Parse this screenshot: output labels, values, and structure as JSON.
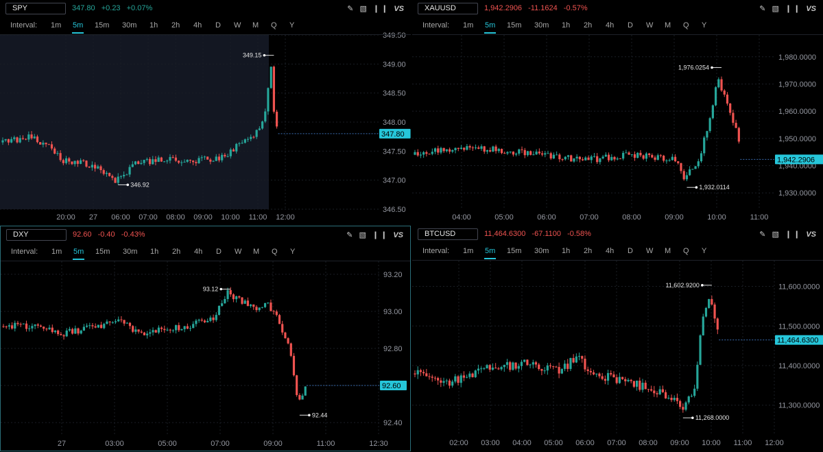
{
  "intervals_label": "Interval:",
  "intervals": [
    "1m",
    "5m",
    "15m",
    "30m",
    "1h",
    "2h",
    "4h",
    "D",
    "W",
    "M",
    "Q",
    "Y"
  ],
  "selected_interval": "5m",
  "tools": [
    "pencil-icon",
    "chart-icon",
    "candles-icon",
    "VS"
  ],
  "colors": {
    "up": "#26a69a",
    "down": "#ef5350",
    "accent": "#26c6da",
    "grid": "#1a1e25",
    "axis_text": "#9598a1"
  },
  "panels": [
    {
      "symbol": "SPY",
      "last": "347.80",
      "change": "+0.23",
      "change_pct": "+0.07%",
      "direction": "up",
      "last_label": "347.80",
      "chart_data": {
        "type": "candlestick",
        "y_ticks": [
          "349.50",
          "349.00",
          "348.50",
          "348.00",
          "347.50",
          "347.00",
          "346.50"
        ],
        "y_range": [
          346.5,
          349.5
        ],
        "x_ticks": [
          "20:00",
          "27",
          "06:00",
          "07:00",
          "08:00",
          "09:00",
          "10:00",
          "11:00",
          "12:00"
        ],
        "high_label": "349.15",
        "low_label": "346.92",
        "last": 347.8,
        "high": 349.15,
        "low": 346.92,
        "session_shading": true
      }
    },
    {
      "symbol": "XAUUSD",
      "last": "1,942.2906",
      "change": "-11.1624",
      "change_pct": "-0.57%",
      "direction": "down",
      "last_label": "1,942.2906",
      "chart_data": {
        "type": "candlestick",
        "y_ticks": [
          "1,980.0000",
          "1,970.0000",
          "1,960.0000",
          "1,950.0000",
          "1,940.0000",
          "1,930.0000"
        ],
        "y_range": [
          1924,
          1988
        ],
        "x_ticks": [
          "04:00",
          "05:00",
          "06:00",
          "07:00",
          "08:00",
          "09:00",
          "10:00",
          "11:00"
        ],
        "high_label": "1,976.0254",
        "low_label": "1,932.0114",
        "last": 1942.2906,
        "high": 1976.0254,
        "low": 1932.0114,
        "session_shading": false
      }
    },
    {
      "symbol": "DXY",
      "last": "92.60",
      "change": "-0.40",
      "change_pct": "-0.43%",
      "direction": "down",
      "last_label": "92.60",
      "chart_data": {
        "type": "candlestick",
        "y_ticks": [
          "93.20",
          "93.00",
          "92.80",
          "92.60",
          "92.40"
        ],
        "y_range": [
          92.33,
          93.27
        ],
        "x_ticks": [
          "27",
          "03:00",
          "05:00",
          "07:00",
          "09:00",
          "11:00",
          "12:30"
        ],
        "high_label": "93.12",
        "low_label": "92.44",
        "last": 92.6,
        "high": 93.12,
        "low": 92.44,
        "session_shading": false
      }
    },
    {
      "symbol": "BTCUSD",
      "last": "11,464.6300",
      "change": "-67.1100",
      "change_pct": "-0.58%",
      "direction": "down",
      "last_label": "11,464.6300",
      "chart_data": {
        "type": "candlestick",
        "y_ticks": [
          "11,600.0000",
          "11,500.0000",
          "11,400.0000",
          "11,300.0000"
        ],
        "y_range": [
          11225,
          11665
        ],
        "x_ticks": [
          "02:00",
          "03:00",
          "04:00",
          "05:00",
          "06:00",
          "07:00",
          "08:00",
          "09:00",
          "10:00",
          "11:00",
          "12:00"
        ],
        "high_label": "11,602.9200",
        "low_label": "11,268.0000",
        "last": 11464.63,
        "high": 11602.92,
        "low": 11268.0,
        "session_shading": false
      }
    }
  ]
}
